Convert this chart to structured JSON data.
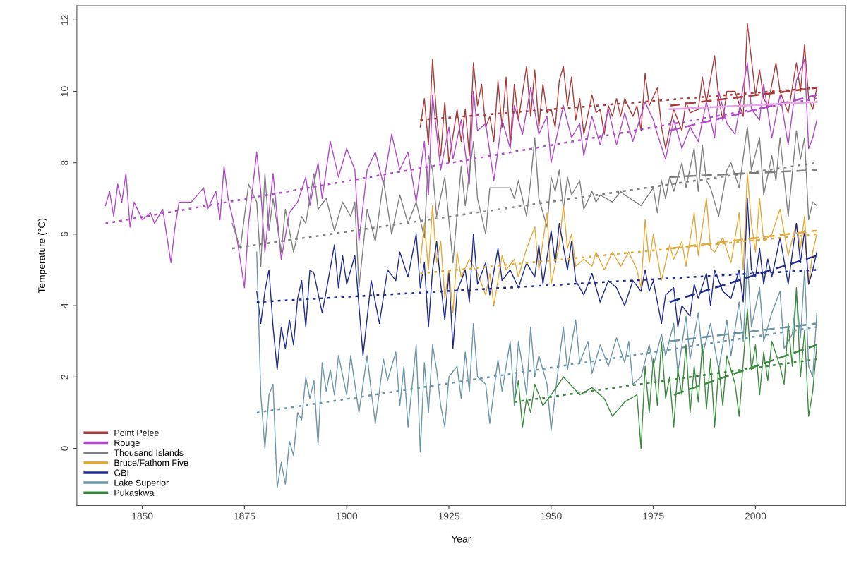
{
  "chart_data": {
    "type": "line",
    "xlabel": "Year",
    "ylabel": "Temperature (°C)",
    "xlim": [
      1834,
      2022
    ],
    "ylim": [
      -1.6,
      12.4
    ],
    "xticks": [
      1850,
      1875,
      1900,
      1925,
      1950,
      1975,
      2000
    ],
    "yticks": [
      0,
      2,
      4,
      6,
      8,
      10,
      12
    ],
    "grid": false,
    "legend": "bottom left",
    "line_style": "solid",
    "series": [
      {
        "name": "Point Pelee",
        "color": "#a83a3a",
        "x": [
          1918,
          1919,
          1920,
          1921,
          1922,
          1923,
          1924,
          1925,
          1927,
          1928,
          1929,
          1930,
          1931,
          1932,
          1933,
          1934,
          1935,
          1936,
          1937,
          1938,
          1939,
          1940,
          1941,
          1942,
          1944,
          1945,
          1946,
          1947,
          1948,
          1949,
          1950,
          1951,
          1952,
          1953,
          1954,
          1955,
          1956,
          1957,
          1958,
          1960,
          1961,
          1962,
          1963,
          1964,
          1965,
          1966,
          1967,
          1968,
          1970,
          1971,
          1972,
          1973,
          1974,
          1976,
          1977,
          1978,
          1980,
          1982,
          1983,
          1984,
          1986,
          1987,
          1988,
          1990,
          1991,
          1992,
          1993,
          1995,
          1997,
          1998,
          1999,
          2000,
          2001,
          2002,
          2003,
          2005,
          2006,
          2007,
          2008,
          2010,
          2011,
          2012,
          2013,
          2014,
          2015
        ],
        "values": [
          9.0,
          9.8,
          8.5,
          10.9,
          9.3,
          8.2,
          9.7,
          8.0,
          9.5,
          8.6,
          9.5,
          8.2,
          10.8,
          9.6,
          10.2,
          9.0,
          9.3,
          8.6,
          10.3,
          9.0,
          10.4,
          8.5,
          10.2,
          9.2,
          10.7,
          9.3,
          10.6,
          9.0,
          10.2,
          9.4,
          9.5,
          9.0,
          10.3,
          10.7,
          9.6,
          10.4,
          9.2,
          9.8,
          8.8,
          9.9,
          9.4,
          9.5,
          8.8,
          9.6,
          9.3,
          9.8,
          9.3,
          9.8,
          9.3,
          9.6,
          8.9,
          10.5,
          9.6,
          10.1,
          9.0,
          8.4,
          9.5,
          8.9,
          9.7,
          9.4,
          9.5,
          10.4,
          9.7,
          11.0,
          9.8,
          9.2,
          10.0,
          10.0,
          9.3,
          11.9,
          10.9,
          9.9,
          10.6,
          9.8,
          9.6,
          10.8,
          10.0,
          9.7,
          9.4,
          10.8,
          10.0,
          11.3,
          9.8,
          9.5,
          10.1
        ]
      },
      {
        "name": "Rouge",
        "color": "#b048c8",
        "x": [
          1841,
          1842,
          1843,
          1844,
          1845,
          1846,
          1847,
          1848,
          1850,
          1852,
          1853,
          1855,
          1857,
          1858,
          1859,
          1862,
          1865,
          1866,
          1868,
          1869,
          1870,
          1871,
          1873,
          1875,
          1876,
          1878,
          1879,
          1880,
          1882,
          1884,
          1886,
          1888,
          1890,
          1891,
          1893,
          1894,
          1896,
          1898,
          1900,
          1902,
          1903,
          1905,
          1907,
          1909,
          1911,
          1913,
          1915,
          1917,
          1919,
          1920,
          1921,
          1923,
          1925,
          1926,
          1928,
          1930,
          1931,
          1932,
          1934,
          1936,
          1938,
          1940,
          1941,
          1943,
          1945,
          1947,
          1949,
          1950,
          1953,
          1955,
          1957,
          1958,
          1960,
          1962,
          1964,
          1966,
          1968,
          1970,
          1973,
          1975,
          1976,
          1978,
          1980,
          1982,
          1984,
          1986,
          1988,
          1990,
          1991,
          1993,
          1995,
          1998,
          1999,
          2001,
          2002,
          2004,
          2006,
          2008,
          2010,
          2012,
          2013,
          2014,
          2015
        ],
        "values": [
          6.8,
          7.2,
          6.5,
          7.4,
          6.9,
          7.7,
          6.2,
          6.9,
          6.4,
          6.6,
          6.3,
          6.7,
          5.2,
          6.2,
          6.9,
          6.9,
          7.3,
          6.7,
          7.2,
          6.4,
          7.9,
          7.0,
          6.0,
          4.5,
          6.3,
          8.3,
          7.2,
          5.5,
          7.7,
          5.3,
          6.6,
          6.9,
          7.6,
          6.8,
          8.0,
          7.0,
          8.6,
          7.6,
          8.4,
          7.8,
          5.8,
          7.8,
          8.3,
          7.4,
          8.8,
          7.8,
          8.3,
          6.9,
          8.6,
          7.1,
          9.9,
          7.8,
          9.0,
          8.1,
          9.2,
          7.4,
          10.0,
          8.9,
          9.1,
          7.5,
          9.2,
          8.4,
          9.6,
          8.8,
          10.1,
          8.8,
          9.3,
          8.0,
          9.6,
          8.7,
          9.1,
          8.2,
          9.3,
          8.5,
          9.5,
          8.5,
          9.4,
          8.6,
          9.7,
          9.2,
          8.8,
          8.1,
          9.2,
          8.4,
          9.0,
          8.6,
          9.7,
          8.7,
          10.0,
          9.1,
          8.8,
          10.8,
          9.5,
          9.2,
          10.2,
          8.7,
          9.9,
          8.5,
          10.3,
          10.9,
          8.4,
          8.7,
          9.2
        ]
      },
      {
        "name": "Thousand Islands",
        "color": "#7f7f7f",
        "x": [
          1872,
          1874,
          1876,
          1878,
          1879,
          1880,
          1881,
          1882,
          1884,
          1885,
          1887,
          1889,
          1890,
          1892,
          1893,
          1895,
          1897,
          1899,
          1901,
          1902,
          1903,
          1905,
          1907,
          1909,
          1911,
          1913,
          1915,
          1917,
          1919,
          1920,
          1921,
          1922,
          1924,
          1926,
          1928,
          1929,
          1931,
          1932,
          1934,
          1935,
          1940,
          1941,
          1942,
          1944,
          1945,
          1946,
          1947,
          1949,
          1950,
          1951,
          1952,
          1953,
          1954,
          1955,
          1957,
          1958,
          1960,
          1961,
          1962,
          1965,
          1967,
          1968,
          1972,
          1975,
          1976,
          1977,
          1978,
          1979,
          1980,
          1982,
          1983,
          1985,
          1986,
          1987,
          1988,
          1989,
          1991,
          1993,
          1994,
          1996,
          1998,
          1999,
          2001,
          2002,
          2004,
          2005,
          2006,
          2008,
          2010,
          2011,
          2012,
          2013,
          2014,
          2015
        ],
        "values": [
          6.3,
          5.6,
          7.4,
          6.9,
          5.1,
          7.7,
          6.1,
          7.0,
          5.5,
          6.7,
          5.5,
          6.5,
          6.3,
          7.7,
          6.7,
          7.0,
          6.1,
          6.9,
          6.5,
          6.9,
          4.5,
          6.7,
          5.8,
          7.5,
          6.0,
          7.1,
          6.3,
          6.9,
          5.9,
          8.2,
          7.8,
          6.5,
          7.6,
          5.2,
          7.9,
          6.8,
          8.6,
          7.0,
          6.0,
          7.3,
          7.3,
          7.0,
          7.5,
          6.5,
          7.5,
          8.7,
          7.0,
          6.2,
          7.6,
          7.2,
          7.8,
          6.7,
          7.6,
          7.1,
          7.5,
          6.7,
          7.2,
          6.9,
          7.1,
          6.9,
          7.2,
          7.1,
          6.8,
          7.3,
          6.6,
          7.5,
          7.0,
          7.6,
          7.2,
          8.0,
          7.3,
          8.4,
          7.2,
          8.5,
          7.5,
          7.3,
          6.5,
          7.8,
          8.0,
          7.3,
          9.0,
          7.8,
          8.7,
          7.1,
          8.2,
          7.5,
          8.7,
          6.5,
          8.9,
          8.1,
          8.7,
          6.4,
          6.9,
          6.8
        ]
      },
      {
        "name": "Bruce/Fathom Five",
        "color": "#e2a93a",
        "x": [
          1918,
          1919,
          1920,
          1921,
          1922,
          1923,
          1924,
          1925,
          1926,
          1927,
          1928,
          1930,
          1932,
          1934,
          1935,
          1936,
          1938,
          1939,
          1941,
          1942,
          1944,
          1946,
          1947,
          1949,
          1950,
          1952,
          1953,
          1954,
          1955,
          1956,
          1958,
          1960,
          1961,
          1963,
          1965,
          1967,
          1969,
          1971,
          1972,
          1973,
          1974,
          1975,
          1977,
          1979,
          1980,
          1982,
          1983,
          1985,
          1986,
          1988,
          1989,
          1990,
          1992,
          1994,
          1996,
          1997,
          1998,
          1999,
          2000,
          2001,
          2002,
          2004,
          2006,
          2008,
          2010,
          2011,
          2012,
          2013,
          2014,
          2015
        ],
        "values": [
          5.2,
          6.3,
          5.0,
          6.8,
          5.2,
          5.8,
          4.2,
          5.0,
          3.8,
          5.5,
          4.8,
          5.3,
          4.9,
          4.3,
          4.9,
          4.0,
          5.4,
          5.0,
          5.3,
          4.8,
          5.6,
          6.2,
          5.0,
          6.6,
          4.6,
          5.7,
          6.8,
          5.6,
          6.0,
          5.1,
          5.3,
          5.1,
          5.5,
          5.0,
          5.5,
          5.1,
          5.5,
          5.0,
          4.5,
          6.4,
          5.2,
          6.0,
          4.7,
          5.7,
          5.3,
          5.8,
          5.1,
          6.6,
          5.4,
          7.0,
          5.6,
          5.5,
          5.9,
          5.2,
          6.6,
          5.0,
          7.7,
          6.3,
          5.5,
          7.0,
          5.8,
          6.0,
          6.7,
          5.4,
          6.3,
          5.6,
          6.5,
          4.6,
          5.5,
          6.0
        ]
      },
      {
        "name": "GBI",
        "color": "#1f2a8c",
        "x": [
          1878,
          1879,
          1880,
          1881,
          1882,
          1883,
          1884,
          1885,
          1886,
          1887,
          1888,
          1889,
          1890,
          1891,
          1892,
          1894,
          1895,
          1897,
          1898,
          1899,
          1900,
          1902,
          1903,
          1904,
          1906,
          1908,
          1910,
          1912,
          1913,
          1915,
          1917,
          1918,
          1919,
          1920,
          1921,
          1922,
          1923,
          1924,
          1925,
          1926,
          1927,
          1929,
          1930,
          1931,
          1932,
          1934,
          1935,
          1937,
          1938,
          1940,
          1942,
          1944,
          1946,
          1947,
          1948,
          1950,
          1951,
          1952,
          1954,
          1955,
          1956,
          1958,
          1960,
          1962,
          1964,
          1966,
          1968,
          1970,
          1972,
          1973,
          1974,
          1975,
          1977,
          1978,
          1980,
          1981,
          1982,
          1984,
          1985,
          1986,
          1988,
          1989,
          1990,
          1992,
          1994,
          1996,
          1997,
          1998,
          1999,
          2000,
          2001,
          2002,
          2003,
          2004,
          2006,
          2008,
          2010,
          2011,
          2012,
          2013,
          2014,
          2015
        ],
        "values": [
          4.4,
          3.5,
          4.4,
          5.0,
          3.4,
          2.2,
          3.4,
          2.8,
          3.6,
          2.9,
          4.2,
          4.7,
          3.4,
          5.0,
          4.9,
          3.8,
          4.4,
          5.7,
          4.5,
          5.4,
          4.6,
          5.4,
          4.0,
          2.6,
          4.7,
          3.5,
          5.0,
          4.7,
          5.5,
          4.8,
          6.0,
          4.5,
          5.2,
          3.4,
          5.0,
          5.8,
          4.6,
          3.6,
          4.9,
          2.8,
          4.4,
          5.0,
          4.1,
          6.0,
          4.6,
          5.2,
          4.3,
          5.6,
          4.7,
          5.0,
          4.5,
          5.2,
          4.8,
          5.7,
          4.6,
          6.1,
          5.2,
          6.3,
          5.0,
          5.8,
          4.7,
          4.3,
          4.9,
          4.1,
          4.7,
          4.5,
          4.0,
          4.7,
          4.4,
          5.0,
          4.4,
          4.7,
          3.5,
          4.3,
          4.5,
          3.4,
          4.0,
          3.7,
          4.6,
          4.2,
          4.9,
          4.0,
          5.0,
          4.4,
          4.2,
          5.0,
          4.1,
          7.0,
          5.0,
          4.8,
          5.6,
          4.6,
          5.3,
          4.8,
          5.9,
          4.6,
          6.3,
          5.2,
          6.1,
          4.6,
          5.0,
          5.5
        ]
      },
      {
        "name": "Lake Superior",
        "color": "#6a95a8",
        "x": [
          1878,
          1879,
          1880,
          1881,
          1882,
          1883,
          1884,
          1885,
          1886,
          1887,
          1888,
          1889,
          1890,
          1891,
          1892,
          1893,
          1894,
          1895,
          1896,
          1897,
          1898,
          1900,
          1901,
          1902,
          1903,
          1905,
          1906,
          1907,
          1909,
          1910,
          1912,
          1913,
          1914,
          1915,
          1917,
          1918,
          1919,
          1920,
          1921,
          1922,
          1923,
          1924,
          1925,
          1927,
          1928,
          1929,
          1930,
          1931,
          1932,
          1934,
          1935,
          1937,
          1938,
          1940,
          1941,
          1942,
          1943,
          1944,
          1945,
          1946,
          1947,
          1949,
          1950,
          1952,
          1953,
          1954,
          1956,
          1957,
          1959,
          1960,
          1962,
          1964,
          1966,
          1968,
          1969,
          1970,
          1972,
          1974,
          1975,
          1977,
          1978,
          1980,
          1981,
          1983,
          1984,
          1986,
          1987,
          1989,
          1991,
          1993,
          1994,
          1996,
          1997,
          1998,
          1999,
          2001,
          2002,
          2004,
          2006,
          2007,
          2009,
          2010,
          2011,
          2012,
          2013,
          2014,
          2015
        ],
        "values": [
          5.5,
          1.5,
          0.0,
          1.5,
          1.8,
          -1.1,
          -0.4,
          -1.0,
          0.2,
          -0.2,
          1.0,
          0.8,
          2.0,
          1.4,
          1.9,
          0.1,
          2.4,
          1.6,
          2.2,
          1.5,
          2.6,
          1.5,
          2.6,
          1.8,
          1.0,
          2.6,
          1.6,
          0.7,
          2.5,
          1.9,
          2.7,
          1.2,
          2.3,
          0.6,
          2.9,
          -0.1,
          2.4,
          1.0,
          2.9,
          2.2,
          1.2,
          0.6,
          2.0,
          2.3,
          1.4,
          2.7,
          1.6,
          3.5,
          2.0,
          1.8,
          0.7,
          2.5,
          1.6,
          3.0,
          1.2,
          3.0,
          2.3,
          1.5,
          3.4,
          2.0,
          2.6,
          1.8,
          0.5,
          2.5,
          3.4,
          2.2,
          3.6,
          2.4,
          3.0,
          2.1,
          2.9,
          2.3,
          3.1,
          2.4,
          3.0,
          1.8,
          2.0,
          2.9,
          2.3,
          3.2,
          2.6,
          3.5,
          2.1,
          3.7,
          2.5,
          3.8,
          2.6,
          3.5,
          2.2,
          3.6,
          2.6,
          4.1,
          3.0,
          5.3,
          3.4,
          4.5,
          3.0,
          3.8,
          4.4,
          2.8,
          3.2,
          4.3,
          3.1,
          5.0,
          2.3,
          2.0,
          3.8
        ]
      },
      {
        "name": "Pukaskwa",
        "color": "#3a8a3e",
        "x": [
          1941,
          1942,
          1943,
          1944,
          1945,
          1946,
          1948,
          1950,
          1953,
          1957,
          1960,
          1963,
          1965,
          1968,
          1971,
          1972,
          1973,
          1974,
          1975,
          1976,
          1977,
          1978,
          1979,
          1980,
          1981,
          1982,
          1983,
          1984,
          1985,
          1986,
          1987,
          1988,
          1989,
          1990,
          1991,
          1992,
          1993,
          1995,
          1996,
          1998,
          1999,
          2000,
          2001,
          2002,
          2003,
          2004,
          2006,
          2007,
          2008,
          2009,
          2010,
          2011,
          2012,
          2013,
          2014,
          2015
        ],
        "values": [
          1.3,
          1.9,
          0.6,
          1.4,
          1.0,
          1.8,
          1.2,
          1.5,
          2.0,
          1.5,
          1.7,
          1.4,
          0.9,
          1.3,
          1.5,
          0.0,
          2.3,
          1.0,
          2.5,
          1.2,
          3.0,
          1.4,
          2.0,
          0.6,
          2.2,
          1.5,
          2.9,
          1.0,
          2.3,
          1.3,
          2.9,
          1.1,
          2.5,
          0.6,
          2.3,
          1.2,
          2.6,
          1.8,
          0.9,
          3.9,
          2.2,
          2.9,
          1.5,
          2.7,
          1.9,
          3.0,
          2.3,
          1.8,
          3.5,
          2.3,
          4.5,
          2.0,
          3.3,
          0.9,
          1.6,
          2.9
        ]
      },
      {
        "color": "#a83a3a",
        "line_style": "dotted",
        "x": [
          1918,
          2015
        ],
        "values": [
          9.2,
          10.1
        ]
      },
      {
        "color": "#a83a3a",
        "line_style": "dashed",
        "x": [
          1979,
          2015
        ],
        "values": [
          9.6,
          10.1
        ]
      },
      {
        "color": "#b048c8",
        "line_style": "dotted",
        "x": [
          1841,
          2015
        ],
        "values": [
          6.3,
          9.8
        ]
      },
      {
        "color": "#b048c8",
        "line_style": "dashed",
        "x": [
          1979,
          2015
        ],
        "values": [
          8.9,
          9.9
        ]
      },
      {
        "color": "#e8a0e8",
        "line_style": "solid",
        "x": [
          1979,
          2015
        ],
        "values": [
          9.5,
          9.7
        ]
      },
      {
        "color": "#7f7f7f",
        "line_style": "dotted",
        "x": [
          1872,
          2015
        ],
        "values": [
          5.6,
          8.0
        ]
      },
      {
        "color": "#7f7f7f",
        "line_style": "dashed",
        "x": [
          1979,
          2015
        ],
        "values": [
          7.6,
          7.8
        ]
      },
      {
        "color": "#e2a93a",
        "line_style": "dotted",
        "x": [
          1918,
          2015
        ],
        "values": [
          4.9,
          6.0
        ]
      },
      {
        "color": "#e2a93a",
        "line_style": "dashed",
        "x": [
          1979,
          2015
        ],
        "values": [
          5.6,
          6.1
        ]
      },
      {
        "color": "#1f2a8c",
        "line_style": "dotted",
        "x": [
          1878,
          2015
        ],
        "values": [
          4.1,
          5.0
        ]
      },
      {
        "color": "#1f2a8c",
        "line_style": "dashed",
        "x": [
          1979,
          2015
        ],
        "values": [
          4.1,
          5.4
        ]
      },
      {
        "color": "#6a95a8",
        "line_style": "dotted",
        "x": [
          1878,
          2015
        ],
        "values": [
          1.0,
          3.4
        ]
      },
      {
        "color": "#6a95a8",
        "line_style": "dashed",
        "x": [
          1979,
          2015
        ],
        "values": [
          3.0,
          3.5
        ]
      },
      {
        "color": "#3a8a3e",
        "line_style": "dotted",
        "x": [
          1941,
          2015
        ],
        "values": [
          1.3,
          2.5
        ]
      },
      {
        "color": "#3a8a3e",
        "line_style": "dashed",
        "x": [
          1980,
          2015
        ],
        "values": [
          1.5,
          2.9
        ]
      }
    ]
  }
}
